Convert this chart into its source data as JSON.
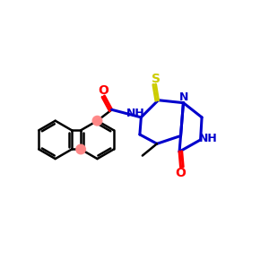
{
  "background_color": "#ffffff",
  "bond_color": "#000000",
  "highlight_color": "#ff8888",
  "blue_color": "#0000cc",
  "yellow_color": "#cccc00",
  "red_color": "#ff0000",
  "fig_size": [
    3.0,
    3.0
  ],
  "dpi": 100,
  "xlim": [
    0,
    10
  ],
  "ylim": [
    0,
    10
  ]
}
